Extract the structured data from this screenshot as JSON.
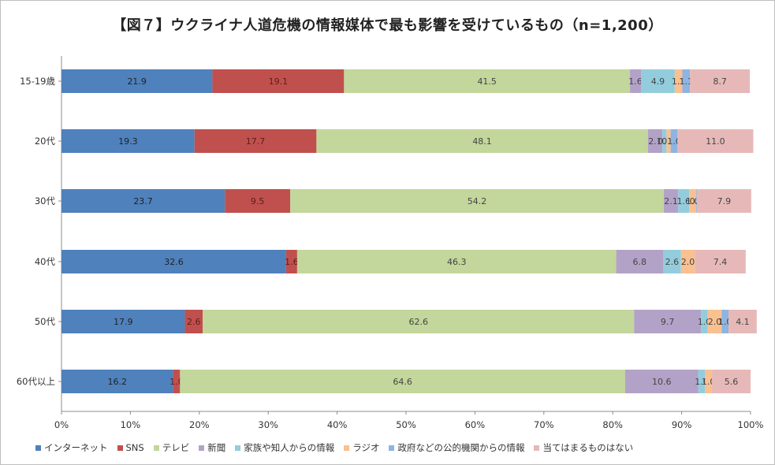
{
  "chart_data": {
    "type": "bar",
    "orientation": "horizontal",
    "stacked": "percent",
    "title": "【図７】ウクライナ人道危機の情報媒体で最も影響を受けているもの（n=1,200）",
    "categories": [
      "15-19歳",
      "20代",
      "30代",
      "40代",
      "50代",
      "60代以上"
    ],
    "series": [
      {
        "name": "インターネット",
        "color": "#4F81BD",
        "label_color": "#222222",
        "values": [
          21.9,
          19.3,
          23.7,
          32.6,
          17.9,
          16.2
        ]
      },
      {
        "name": "SNS",
        "color": "#C0504D",
        "label_color": "#5a1f1d",
        "values": [
          19.1,
          17.7,
          9.5,
          1.6,
          2.6,
          1.0
        ]
      },
      {
        "name": "テレビ",
        "color": "#C3D69B",
        "label_color": "#444444",
        "values": [
          41.5,
          48.1,
          54.2,
          46.3,
          62.6,
          64.6
        ]
      },
      {
        "name": "新聞",
        "color": "#B3A2C7",
        "label_color": "#444444",
        "values": [
          1.6,
          2.1,
          2.1,
          6.8,
          9.7,
          10.6
        ]
      },
      {
        "name": "家族や知人からの情報",
        "color": "#93CDDD",
        "label_color": "#444444",
        "values": [
          4.9,
          0.6,
          1.6,
          2.6,
          1.0,
          1.0
        ]
      },
      {
        "name": "ラジオ",
        "color": "#FAC090",
        "label_color": "#444444",
        "values": [
          1.1,
          0.6,
          1.0,
          2.0,
          2.0,
          1.0
        ]
      },
      {
        "name": "政府などの公的機関からの情報",
        "color": "#8DB4E2",
        "label_color": "#444444",
        "values": [
          1.1,
          1.0,
          0.1,
          0.0,
          1.0,
          0.0
        ]
      },
      {
        "name": "当てはまるものはない",
        "color": "#E6B9B8",
        "label_color": "#444444",
        "values": [
          8.7,
          11.0,
          7.9,
          7.4,
          4.1,
          5.6
        ]
      }
    ],
    "x_axis": {
      "min": 0,
      "max": 100,
      "ticks": [
        "0%",
        "10%",
        "20%",
        "30%",
        "40%",
        "50%",
        "60%",
        "70%",
        "80%",
        "90%",
        "100%"
      ]
    },
    "grid": false,
    "legend_position": "bottom"
  }
}
